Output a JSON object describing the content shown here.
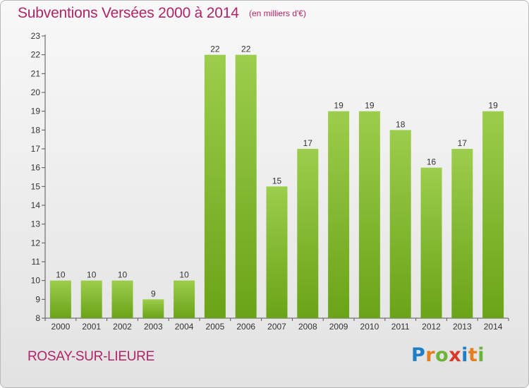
{
  "header": {
    "title": "Subventions Versées 2000 à 2014",
    "unit": "(en milliers d'€)"
  },
  "footer": {
    "commune": "ROSAY-SUR-LIEURE",
    "logo": "Proxiti"
  },
  "colors": {
    "title": "#b02468",
    "bar_light": "#9ccd4c",
    "bar_dark": "#6aa318"
  },
  "chart_data": {
    "type": "bar",
    "title": "Subventions Versées 2000 à 2014",
    "xlabel": "",
    "ylabel": "",
    "categories": [
      "2000",
      "2001",
      "2002",
      "2003",
      "2004",
      "2005",
      "2006",
      "2007",
      "2008",
      "2009",
      "2010",
      "2011",
      "2012",
      "2013",
      "2014"
    ],
    "values": [
      10,
      10,
      10,
      9,
      10,
      22,
      22,
      15,
      17,
      19,
      19,
      18,
      16,
      17,
      19
    ],
    "ylim": [
      8,
      23
    ],
    "yticks": [
      8,
      9,
      10,
      11,
      12,
      13,
      14,
      15,
      16,
      17,
      18,
      19,
      20,
      21,
      22,
      23
    ],
    "grid": false,
    "legend": "none"
  }
}
